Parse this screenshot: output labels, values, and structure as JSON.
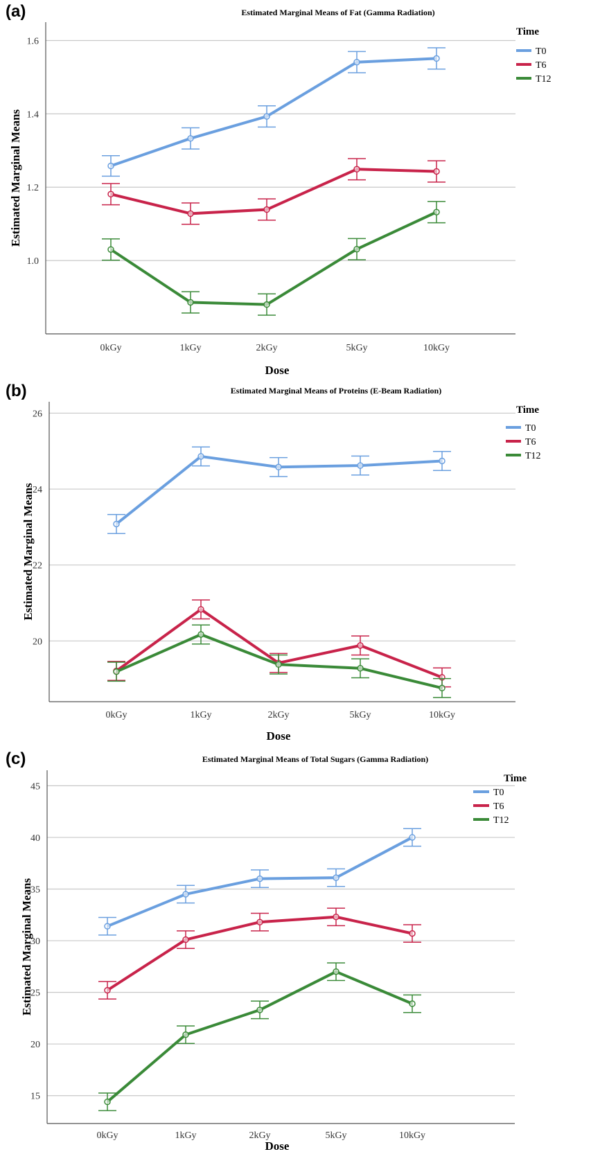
{
  "chart_data": [
    {
      "panel_label": "(a)",
      "type": "line",
      "title": "Estimated Marginal Means of Fat (Gamma Radiation)",
      "xlabel": "Dose",
      "ylabel": "Estimated Marginal Means",
      "categories": [
        "0kGy",
        "1kGy",
        "2kGy",
        "5kGy",
        "10kGy"
      ],
      "ylim": [
        0.8,
        1.65
      ],
      "yticks": [
        1.0,
        1.2,
        1.4,
        1.6
      ],
      "ytick_labels": [
        "1.0",
        "1.2",
        "1.4",
        "1.6"
      ],
      "grid": true,
      "legend": {
        "title": "Time",
        "position": "top-right"
      },
      "series": [
        {
          "name": "T0",
          "color": "#6a9fdf",
          "values": [
            1.258,
            1.333,
            1.393,
            1.541,
            1.551
          ],
          "error": [
            0.028,
            0.029,
            0.029,
            0.029,
            0.029
          ]
        },
        {
          "name": "T6",
          "color": "#c8234a",
          "values": [
            1.181,
            1.128,
            1.139,
            1.249,
            1.243
          ],
          "error": [
            0.029,
            0.029,
            0.029,
            0.029,
            0.029
          ]
        },
        {
          "name": "T12",
          "color": "#3a8a38",
          "values": [
            1.03,
            0.886,
            0.88,
            1.031,
            1.132
          ],
          "error": [
            0.029,
            0.029,
            0.029,
            0.029,
            0.029
          ]
        }
      ]
    },
    {
      "panel_label": "(b)",
      "type": "line",
      "title": "Estimated Marginal Means of Proteins (E-Beam Radiation)",
      "xlabel": "Dose",
      "ylabel": "Estimated Marginal Means",
      "categories": [
        "0kGy",
        "1kGy",
        "2kGy",
        "5kGy",
        "10kGy"
      ],
      "ylim": [
        18.4,
        26.3
      ],
      "yticks": [
        20,
        22,
        24,
        26
      ],
      "ytick_labels": [
        "20",
        "22",
        "24",
        "26"
      ],
      "grid": true,
      "legend": {
        "title": "Time",
        "position": "top-right"
      },
      "series": [
        {
          "name": "T0",
          "color": "#6a9fdf",
          "values": [
            23.08,
            24.86,
            24.58,
            24.62,
            24.74
          ],
          "error": [
            0.25,
            0.25,
            0.25,
            0.25,
            0.25
          ]
        },
        {
          "name": "T6",
          "color": "#c8234a",
          "values": [
            19.21,
            20.83,
            19.42,
            19.88,
            19.04
          ],
          "error": [
            0.25,
            0.25,
            0.25,
            0.25,
            0.25
          ]
        },
        {
          "name": "T12",
          "color": "#3a8a38",
          "values": [
            19.19,
            20.17,
            19.38,
            19.28,
            18.76
          ],
          "error": [
            0.25,
            0.25,
            0.25,
            0.25,
            0.25
          ]
        }
      ]
    },
    {
      "panel_label": "(c)",
      "type": "line",
      "title": "Estimated Marginal Means of Total Sugars (Gamma Radiation)",
      "xlabel": "Dose",
      "ylabel": "Estimated Marginal Means",
      "categories": [
        "0kGy",
        "1kGy",
        "2kGy",
        "5kGy",
        "10kGy"
      ],
      "ylim": [
        12.3,
        46.5
      ],
      "yticks": [
        15,
        20,
        25,
        30,
        35,
        40,
        45
      ],
      "ytick_labels": [
        "15",
        "20",
        "25",
        "30",
        "35",
        "40",
        "45"
      ],
      "grid": true,
      "legend": {
        "title": "Time",
        "position": "top-right"
      },
      "series": [
        {
          "name": "T0",
          "color": "#6a9fdf",
          "values": [
            31.4,
            34.5,
            36.0,
            36.1,
            40.0
          ],
          "error": [
            0.85,
            0.85,
            0.85,
            0.85,
            0.85
          ]
        },
        {
          "name": "T6",
          "color": "#c8234a",
          "values": [
            25.2,
            30.1,
            31.8,
            32.3,
            30.7
          ],
          "error": [
            0.85,
            0.85,
            0.85,
            0.85,
            0.85
          ]
        },
        {
          "name": "T12",
          "color": "#3a8a38",
          "values": [
            14.4,
            20.9,
            23.3,
            27.0,
            23.9
          ],
          "error": [
            0.85,
            0.85,
            0.85,
            0.85,
            0.85
          ]
        }
      ]
    }
  ]
}
